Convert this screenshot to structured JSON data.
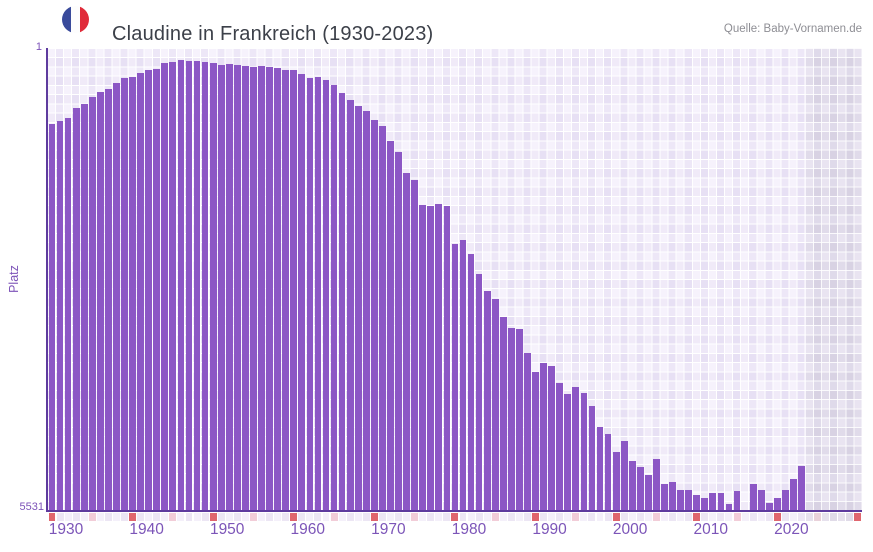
{
  "header": {
    "title": "Claudine in Frankreich (1930-2023)",
    "source": "Quelle: Baby-Vornamen.de",
    "flag_icon": "france-flag-circle",
    "flag_colors": {
      "blue": "#394a9b",
      "white": "#fdfdfd",
      "red": "#e02b3a"
    }
  },
  "axes": {
    "y_label": "Platz",
    "y_top_tick": "1",
    "y_bottom_tick": "5531",
    "x_ticks": [
      "1930",
      "1940",
      "1950",
      "1960",
      "1970",
      "1980",
      "1990",
      "2000",
      "2010",
      "2020"
    ]
  },
  "colors": {
    "bar": "#8c57c5",
    "axis_line": "#5e3b9e",
    "tick_text": "#7c52b8",
    "decade_marker": "#e0666e",
    "half_decade_marker": "#f2cdd8",
    "marker_base_even": "#f4f0fa",
    "marker_base_odd": "#ece6f4",
    "marker_future_even": "#e6e1ed",
    "marker_future_odd": "#e0dbe8",
    "half_decade_future": "#e9d2da"
  },
  "chart_data": {
    "type": "bar",
    "title": "Claudine in Frankreich (1930-2023)",
    "xlabel": "",
    "ylabel": "Platz",
    "legend": null,
    "grid": true,
    "y_axis": {
      "top_value": 1,
      "bottom_value": 5531,
      "inverted": true,
      "note": "rank chart: bar rises from bottom, bar top = rank for that year, rank 1 = full height"
    },
    "x_axis": {
      "data_start": 1930,
      "data_end": 2023,
      "axis_end": 2030,
      "tick_step": 10,
      "no_data_band": [
        2024,
        2030
      ]
    },
    "years": [
      1930,
      1931,
      1932,
      1933,
      1934,
      1935,
      1936,
      1937,
      1938,
      1939,
      1940,
      1941,
      1942,
      1943,
      1944,
      1945,
      1946,
      1947,
      1948,
      1949,
      1950,
      1951,
      1952,
      1953,
      1954,
      1955,
      1956,
      1957,
      1958,
      1959,
      1960,
      1961,
      1962,
      1963,
      1964,
      1965,
      1966,
      1967,
      1968,
      1969,
      1970,
      1971,
      1972,
      1973,
      1974,
      1975,
      1976,
      1977,
      1978,
      1979,
      1980,
      1981,
      1982,
      1983,
      1984,
      1985,
      1986,
      1987,
      1988,
      1989,
      1990,
      1991,
      1992,
      1993,
      1994,
      1995,
      1996,
      1997,
      1998,
      1999,
      2000,
      2001,
      2002,
      2003,
      2004,
      2005,
      2006,
      2007,
      2008,
      2009,
      2010,
      2011,
      2012,
      2013,
      2014,
      2015,
      2016,
      2017,
      2018,
      2019,
      2020,
      2021,
      2022,
      2023
    ],
    "ranks": [
      911,
      875,
      839,
      719,
      671,
      587,
      522,
      492,
      420,
      360,
      354,
      300,
      264,
      252,
      181,
      169,
      145,
      157,
      157,
      169,
      175,
      204,
      192,
      204,
      216,
      228,
      222,
      234,
      246,
      270,
      270,
      312,
      360,
      354,
      384,
      444,
      534,
      623,
      701,
      761,
      863,
      935,
      1120,
      1240,
      1497,
      1581,
      1880,
      1892,
      1868,
      1892,
      2347,
      2305,
      2467,
      2706,
      2910,
      3006,
      3221,
      3347,
      3365,
      3652,
      3885,
      3771,
      3807,
      4011,
      4143,
      4059,
      4131,
      4286,
      4538,
      4621,
      4837,
      4705,
      4945,
      5016,
      5112,
      4921,
      5220,
      5196,
      5292,
      5292,
      5352,
      5388,
      5328,
      5328,
      5459,
      5304,
      null,
      5220,
      5292,
      5447,
      5388,
      5292,
      5160,
      5004
    ]
  }
}
